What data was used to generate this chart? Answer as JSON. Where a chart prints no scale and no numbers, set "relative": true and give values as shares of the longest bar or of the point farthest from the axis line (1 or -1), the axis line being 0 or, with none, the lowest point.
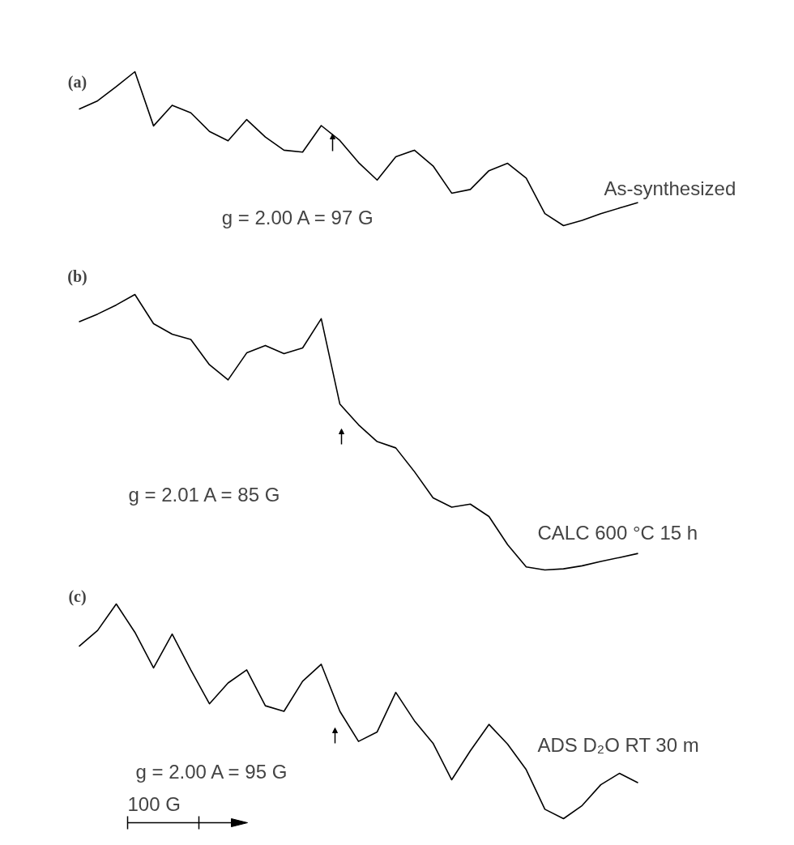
{
  "chart_data": [
    {
      "type": "line",
      "title": "(a)",
      "relative": true,
      "color": "#000000",
      "categories": [
        null,
        null,
        null,
        null,
        null,
        null,
        null,
        null,
        null,
        null,
        null,
        null,
        null,
        null,
        null,
        null,
        null,
        null,
        null,
        null,
        null,
        null,
        null,
        null,
        null,
        null,
        null,
        null,
        null,
        null,
        null
      ],
      "values": [
        0.757,
        0.811,
        0.903,
        1.0,
        0.648,
        0.782,
        0.733,
        0.612,
        0.551,
        0.689,
        0.576,
        0.49,
        0.478,
        0.65,
        0.553,
        0.41,
        0.296,
        0.447,
        0.49,
        0.388,
        0.211,
        0.235,
        0.357,
        0.405,
        0.308,
        0.078,
        0.0,
        0.034,
        0.078,
        0.114,
        0.15
      ],
      "annotations": [
        "g = 2.00 A = 97 G",
        "As-synthesized"
      ]
    },
    {
      "type": "line",
      "title": "(b)",
      "relative": true,
      "color": "#000000",
      "categories": [
        null,
        null,
        null,
        null,
        null,
        null,
        null,
        null,
        null,
        null,
        null,
        null,
        null,
        null,
        null,
        null,
        null,
        null,
        null,
        null,
        null,
        null,
        null,
        null,
        null,
        null,
        null,
        null,
        null,
        null,
        null
      ],
      "values": [
        0.901,
        0.929,
        0.962,
        1.0,
        0.894,
        0.856,
        0.837,
        0.745,
        0.69,
        0.788,
        0.815,
        0.785,
        0.806,
        0.912,
        0.602,
        0.527,
        0.466,
        0.443,
        0.357,
        0.262,
        0.228,
        0.239,
        0.194,
        0.092,
        0.011,
        0.0,
        0.004,
        0.015,
        0.031,
        0.045,
        0.06
      ],
      "annotations": [
        "g = 2.01 A = 85 G",
        "CALC 600 °C 15 h"
      ]
    },
    {
      "type": "line",
      "title": "(c)",
      "relative": true,
      "color": "#000000",
      "categories": [
        null,
        null,
        null,
        null,
        null,
        null,
        null,
        null,
        null,
        null,
        null,
        null,
        null,
        null,
        null,
        null,
        null,
        null,
        null,
        null,
        null,
        null,
        null,
        null,
        null,
        null,
        null,
        null,
        null,
        null,
        null
      ],
      "values": [
        0.802,
        0.877,
        1.0,
        0.868,
        0.702,
        0.86,
        0.693,
        0.535,
        0.632,
        0.693,
        0.526,
        0.5,
        0.64,
        0.719,
        0.5,
        0.36,
        0.404,
        0.588,
        0.456,
        0.351,
        0.181,
        0.316,
        0.439,
        0.347,
        0.228,
        0.044,
        0.0,
        0.061,
        0.158,
        0.211,
        0.167
      ],
      "annotations": [
        "g = 2.00 A = 95 G",
        "ADS D₂O RT 30 m",
        "100 G"
      ]
    }
  ]
}
